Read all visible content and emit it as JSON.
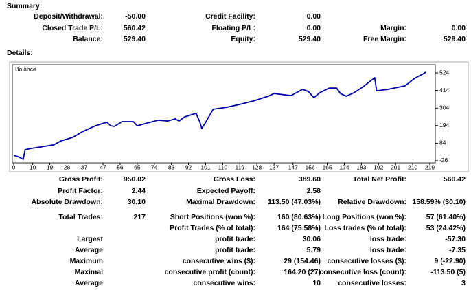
{
  "summary": {
    "title": "Summary:",
    "rows": [
      [
        "Deposit/Withdrawal:",
        "-50.00",
        "Credit Facility:",
        "0.00",
        null,
        null
      ],
      [
        "Closed Trade P/L:",
        "560.42",
        "Floating P/L:",
        "0.00",
        "Margin:",
        "0.00"
      ],
      [
        "Balance:",
        "529.40",
        "Equity:",
        "529.40",
        "Free Margin:",
        "529.40"
      ]
    ]
  },
  "details": {
    "title": "Details:",
    "rows": [
      [
        "Gross Profit:",
        "950.02",
        "Gross Loss:",
        "389.60",
        "Total Net Profit:",
        "560.42"
      ],
      [
        "Profit Factor:",
        "2.44",
        "Expected Payoff:",
        "2.58",
        null,
        null
      ],
      [
        "Absolute Drawdown:",
        "30.10",
        "Maximal Drawdown:",
        "113.50 (47.03%)",
        "Relative Drawdown:",
        "158.59% (30.10)"
      ],
      [
        "Total Trades:",
        "217",
        "Short Positions (won %):",
        "160 (80.63%)",
        "Long Positions (won %):",
        "57 (61.40%)"
      ],
      [
        null,
        null,
        "Profit Trades (% of total):",
        "164 (75.58%)",
        "Loss trades (% of total):",
        "53 (24.42%)"
      ],
      [
        "Largest",
        null,
        "profit trade:",
        "30.06",
        "loss trade:",
        "-57.30"
      ],
      [
        "Average",
        null,
        "profit trade:",
        "5.79",
        "loss trade:",
        "-7.35"
      ],
      [
        "Maximum",
        null,
        "consecutive wins ($):",
        "29 (154.46)",
        "consecutive losses ($):",
        "9 (-22.90)"
      ],
      [
        "Maximal",
        null,
        "consecutive profit (count):",
        "164.20 (27)",
        "consecutive loss (count):",
        "-113.50 (5)"
      ],
      [
        "Average",
        null,
        "consecutive wins:",
        "10",
        "consecutive losses:",
        "3"
      ]
    ]
  },
  "chart_data": {
    "type": "line",
    "x": [
      0,
      3,
      5,
      6,
      9,
      14,
      21,
      25,
      31,
      36,
      43,
      49,
      51,
      53,
      57,
      63,
      65,
      69,
      76,
      81,
      85,
      87,
      90,
      96,
      98,
      99,
      101,
      105,
      112,
      119,
      126,
      134,
      137,
      146,
      152,
      155,
      158,
      161,
      166,
      170,
      172,
      175,
      179,
      184,
      190,
      191,
      197,
      206,
      211,
      215,
      217
    ],
    "series": [
      {
        "name": "Balance",
        "color": "#0000aa",
        "values": [
          8,
          -4,
          -17,
          43,
          51,
          60,
          73,
          99,
          120,
          155,
          193,
          215,
          193,
          189,
          219,
          219,
          193,
          206,
          228,
          223,
          236,
          223,
          249,
          271,
          215,
          176,
          215,
          297,
          309,
          327,
          348,
          378,
          395,
          382,
          421,
          408,
          369,
          399,
          429,
          429,
          395,
          378,
          399,
          438,
          494,
          412,
          421,
          443,
          490,
          515,
          529
        ]
      }
    ],
    "xlim": [
      0,
      221
    ],
    "ylim": [
      -52,
      563
    ],
    "xticks": [
      0,
      10,
      19,
      28,
      37,
      47,
      56,
      65,
      74,
      83,
      92,
      101,
      110,
      119,
      128,
      137,
      147,
      156,
      165,
      174,
      183,
      192,
      201,
      210,
      219
    ],
    "yticks": [
      -26,
      84,
      194,
      304,
      414,
      524
    ]
  }
}
